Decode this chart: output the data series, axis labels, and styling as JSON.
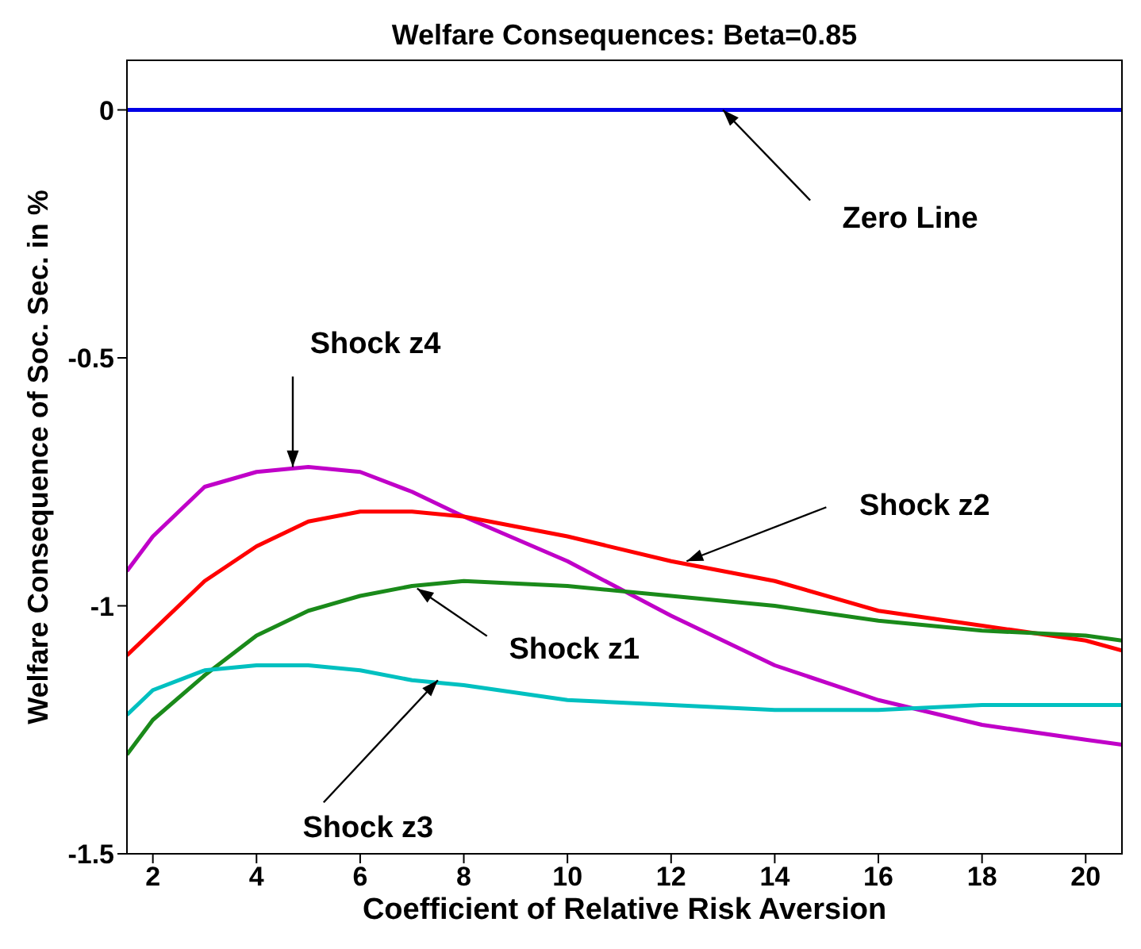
{
  "chart_data": {
    "type": "line",
    "title": "Welfare Consequences: Beta=0.85",
    "xlabel": "Coefficient of Relative Risk Aversion",
    "ylabel": "Welfare Consequence of Soc. Sec. in %",
    "xlim": [
      1.5,
      20.7
    ],
    "xticks": [
      2,
      4,
      6,
      8,
      10,
      12,
      14,
      16,
      18,
      20
    ],
    "ylim": [
      -1.5,
      0.1
    ],
    "yticks": [
      0,
      -0.5,
      -1,
      -1.5
    ],
    "grid": false,
    "marker": "none",
    "line_style": "solid",
    "x": [
      1.5,
      2,
      3,
      4,
      5,
      6,
      7,
      8,
      10,
      12,
      14,
      16,
      18,
      20,
      20.7
    ],
    "series": [
      {
        "color": "#0000e6",
        "values": [
          0,
          0,
          0,
          0,
          0,
          0,
          0,
          0,
          0,
          0,
          0,
          0,
          0,
          0,
          0
        ]
      },
      {
        "color": "#c000c8",
        "values": [
          -0.93,
          -0.86,
          -0.76,
          -0.73,
          -0.72,
          -0.73,
          -0.77,
          -0.82,
          -0.91,
          -1.02,
          -1.12,
          -1.19,
          -1.24,
          -1.27,
          -1.28
        ]
      },
      {
        "color": "#ff0000",
        "values": [
          -1.1,
          -1.05,
          -0.95,
          -0.88,
          -0.83,
          -0.81,
          -0.81,
          -0.82,
          -0.86,
          -0.91,
          -0.95,
          -1.01,
          -1.04,
          -1.07,
          -1.09
        ]
      },
      {
        "color": "#1a8a1a",
        "values": [
          -1.3,
          -1.23,
          -1.14,
          -1.06,
          -1.01,
          -0.98,
          -0.96,
          -0.95,
          -0.96,
          -0.98,
          -1.0,
          -1.03,
          -1.05,
          -1.06,
          -1.07
        ]
      },
      {
        "color": "#00c0c0",
        "values": [
          -1.22,
          -1.17,
          -1.13,
          -1.12,
          -1.12,
          -1.13,
          -1.15,
          -1.16,
          -1.19,
          -1.2,
          -1.21,
          -1.21,
          -1.2,
          -1.2,
          -1.2
        ]
      }
    ],
    "annotations": [
      {
        "text": "Zero Line",
        "x": 13,
        "y": 0
      },
      {
        "text": "Shock z4",
        "x": 4.7,
        "y": -0.72
      },
      {
        "text": "Shock z2",
        "x": 12.3,
        "y": -0.91
      },
      {
        "text": "Shock z1",
        "x": 7.1,
        "y": -0.965
      },
      {
        "text": "Shock z3",
        "x": 7.5,
        "y": -1.15
      }
    ]
  }
}
